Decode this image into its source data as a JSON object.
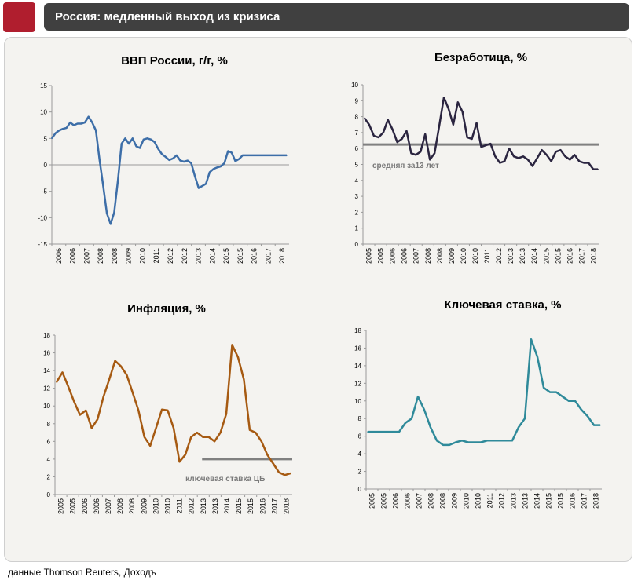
{
  "header": {
    "title": "Россия: медленный выход из кризиса"
  },
  "footer": {
    "source": "данные Thomson Reuters, Доходъ"
  },
  "colors": {
    "gdp": "#3d6ea8",
    "unemp": "#2b2540",
    "infl": "#a65a12",
    "rate": "#2f8a9a",
    "ref": "#808080"
  },
  "chart_data": [
    {
      "id": "gdp",
      "type": "line",
      "title": "ВВП России, г/г, %",
      "x_ticks": [
        "2006",
        "2006",
        "2007",
        "2008",
        "2008",
        "2009",
        "2010",
        "2011",
        "2012",
        "2012",
        "2013",
        "2014",
        "2015",
        "2015",
        "2016",
        "2017",
        "2018"
      ],
      "y_ticks": [
        "15",
        "10",
        "5",
        "0",
        "-5",
        "-10",
        "-15"
      ],
      "ylim": [
        -15,
        15
      ],
      "zero_line": true,
      "series": [
        {
          "x": [
            0,
            0.5,
            1,
            1.5,
            2,
            2.5,
            3,
            3.5,
            4,
            4.5,
            5,
            5.5,
            6,
            6.5,
            7,
            7.5,
            8,
            8.5,
            9,
            9.5,
            10,
            10.5,
            11,
            11.5,
            12,
            12.5,
            13,
            13.5,
            14,
            14.5,
            15,
            15.5,
            16,
            16.5,
            17,
            17.5,
            18,
            18.5,
            19,
            19.5,
            20,
            20.5,
            21,
            21.5,
            22,
            22.5,
            23,
            23.5,
            24,
            24.5,
            25,
            25.5,
            26,
            26.5,
            27,
            27.5,
            28,
            28.5,
            29,
            29.5,
            30,
            30.5,
            31,
            31.5,
            32
          ],
          "values": [
            5,
            6,
            6.5,
            6.8,
            7,
            8,
            7.5,
            7.8,
            7.8,
            8,
            9.1,
            8,
            6.5,
            1,
            -4,
            -9.2,
            -11.2,
            -9,
            -3,
            4,
            5,
            4,
            5,
            3.5,
            3.2,
            4.8,
            5,
            4.8,
            4.3,
            3,
            2,
            1.5,
            0.9,
            1.2,
            1.8,
            0.8,
            0.6,
            0.8,
            0.3,
            -2.2,
            -4.4,
            -4,
            -3.6,
            -1.4,
            -0.8,
            -0.5,
            -0.3,
            0.3,
            2.6,
            2.3,
            0.7,
            1.1,
            1.8,
            1.8,
            1.8,
            1.8,
            1.8,
            1.8,
            1.8,
            1.8,
            1.8,
            1.8,
            1.8,
            1.8,
            1.8
          ]
        }
      ],
      "n_x": 18
    },
    {
      "id": "unemp",
      "type": "line",
      "title": "Безработица, %",
      "x_ticks": [
        "2005",
        "2005",
        "2006",
        "2006",
        "2007",
        "2008",
        "2008",
        "2009",
        "2010",
        "2010",
        "2011",
        "2012",
        "2013",
        "2013",
        "2014",
        "2015",
        "2015",
        "2016",
        "2017",
        "2018"
      ],
      "y_ticks": [
        "10",
        "9",
        "8",
        "7",
        "6",
        "5",
        "4",
        "3",
        "2",
        "1",
        "0"
      ],
      "ylim": [
        0,
        10
      ],
      "ref_line": {
        "value": 6.25,
        "label": "средняя за13 лет"
      },
      "series": [
        {
          "values": [
            7.9,
            7.5,
            6.8,
            6.7,
            7.0,
            7.8,
            7.2,
            6.4,
            6.6,
            7.1,
            5.7,
            5.6,
            5.8,
            6.9,
            5.3,
            5.7,
            7.4,
            9.2,
            8.5,
            7.5,
            8.9,
            8.3,
            6.7,
            6.6,
            7.6,
            6.1,
            6.2,
            6.3,
            5.5,
            5.1,
            5.2,
            6.0,
            5.5,
            5.4,
            5.5,
            5.3,
            4.9,
            5.4,
            5.9,
            5.6,
            5.2,
            5.8,
            5.9,
            5.5,
            5.3,
            5.6,
            5.2,
            5.1,
            5.1,
            4.7,
            4.7
          ]
        }
      ]
    },
    {
      "id": "infl",
      "type": "line",
      "title": "Инфляция, %",
      "x_ticks": [
        "2005",
        "2005",
        "2006",
        "2006",
        "2007",
        "2008",
        "2008",
        "2009",
        "2010",
        "2010",
        "2011",
        "2012",
        "2013",
        "2013",
        "2014",
        "2015",
        "2015",
        "2016",
        "2017",
        "2018"
      ],
      "y_ticks": [
        "18",
        "16",
        "14",
        "12",
        "10",
        "8",
        "6",
        "4",
        "2",
        "0"
      ],
      "ylim": [
        0,
        18
      ],
      "ref_line": {
        "value": 4,
        "label": "ключевая ставка ЦБ"
      },
      "series": [
        {
          "values": [
            12.7,
            13.8,
            12.2,
            10.5,
            9.0,
            9.5,
            7.5,
            8.5,
            11.0,
            13.0,
            15.1,
            14.5,
            13.5,
            11.5,
            9.5,
            6.5,
            5.5,
            7.5,
            9.6,
            9.5,
            7.5,
            3.7,
            4.5,
            6.5,
            7.0,
            6.5,
            6.5,
            6.0,
            7.0,
            9.1,
            16.9,
            15.5,
            13.0,
            7.3,
            7.0,
            6.0,
            4.5,
            3.5,
            2.5,
            2.2,
            2.4
          ]
        }
      ]
    },
    {
      "id": "rate",
      "type": "line",
      "title": "Ключевая ставка, %",
      "x_ticks": [
        "2005",
        "2005",
        "2006",
        "2006",
        "2007",
        "2008",
        "2008",
        "2009",
        "2010",
        "2010",
        "2011",
        "2012",
        "2013",
        "2013",
        "2014",
        "2015",
        "2015",
        "2016",
        "2017",
        "2018"
      ],
      "y_ticks": [
        "18",
        "16",
        "14",
        "12",
        "10",
        "8",
        "6",
        "4",
        "2",
        "0"
      ],
      "ylim": [
        0,
        18
      ],
      "series": [
        {
          "values": [
            6.5,
            6.5,
            6.5,
            6.5,
            6.5,
            6.5,
            7.5,
            8.0,
            10.5,
            9.0,
            7.0,
            5.5,
            5.0,
            5.0,
            5.3,
            5.5,
            5.3,
            5.3,
            5.3,
            5.5,
            5.5,
            5.5,
            5.5,
            5.5,
            7.0,
            8.0,
            17.0,
            15.0,
            11.5,
            11.0,
            11.0,
            10.5,
            10.0,
            10.0,
            9.0,
            8.25,
            7.25,
            7.25
          ]
        }
      ]
    }
  ]
}
